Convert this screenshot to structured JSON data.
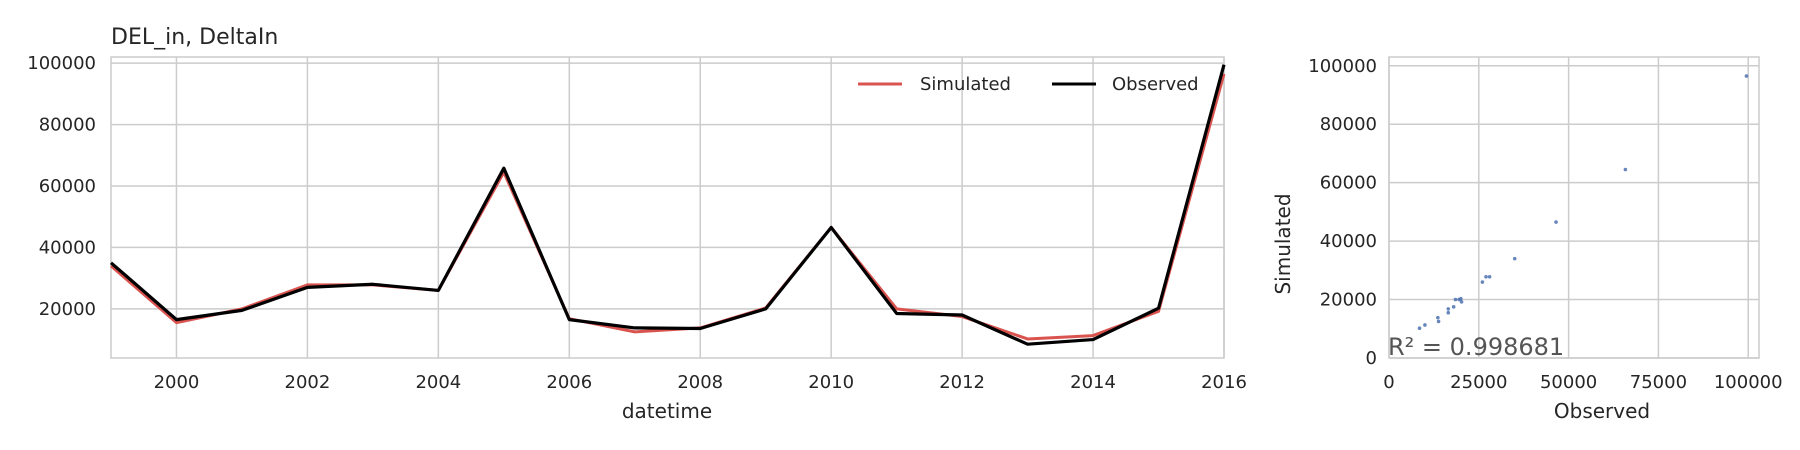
{
  "chart_data": [
    {
      "type": "line",
      "title": "DEL_in, DeltaIn",
      "xlabel": "datetime",
      "ylabel": "",
      "xlim": [
        1999,
        2016
      ],
      "ylim": [
        4000,
        102000
      ],
      "grid": true,
      "legend_position": "top-right",
      "x_ticks": [
        "2000",
        "2002",
        "2004",
        "2006",
        "2008",
        "2010",
        "2012",
        "2014",
        "2016"
      ],
      "y_ticks": [
        "20000",
        "40000",
        "60000",
        "80000",
        "100000"
      ],
      "x": [
        1999,
        2000,
        2001,
        2002,
        2003,
        2004,
        2005,
        2006,
        2007,
        2008,
        2009,
        2010,
        2011,
        2012,
        2013,
        2014,
        2015,
        2016
      ],
      "series": [
        {
          "name": "Simulated",
          "color": "#d9534f",
          "values": [
            34000,
            15500,
            20000,
            27800,
            27800,
            26000,
            64500,
            16800,
            12500,
            13800,
            20300,
            46500,
            20000,
            17500,
            10200,
            11300,
            19200,
            96500
          ]
        },
        {
          "name": "Observed",
          "color": "#000000",
          "values": [
            35000,
            16500,
            19500,
            27000,
            28000,
            26000,
            65800,
            16500,
            13800,
            13600,
            20000,
            46500,
            18500,
            18000,
            8500,
            10000,
            20200,
            99500
          ]
        }
      ]
    },
    {
      "type": "scatter",
      "xlabel": "Observed",
      "ylabel": "Simulated",
      "xlim": [
        0,
        103000
      ],
      "ylim": [
        0,
        103000
      ],
      "grid": true,
      "x_ticks": [
        "0",
        "25000",
        "50000",
        "75000",
        "100000"
      ],
      "y_ticks": [
        "0",
        "20000",
        "40000",
        "60000",
        "80000",
        "100000"
      ],
      "point_color": "#4c72b0",
      "annotation": "R² = 0.998681",
      "points": [
        [
          8500,
          10200
        ],
        [
          10000,
          11300
        ],
        [
          13600,
          13800
        ],
        [
          13800,
          12500
        ],
        [
          16500,
          16800
        ],
        [
          16500,
          15500
        ],
        [
          18000,
          17500
        ],
        [
          18500,
          20000
        ],
        [
          19500,
          20000
        ],
        [
          20000,
          20300
        ],
        [
          20200,
          19200
        ],
        [
          26000,
          26000
        ],
        [
          27000,
          27800
        ],
        [
          28000,
          27800
        ],
        [
          35000,
          34000
        ],
        [
          46500,
          46500
        ],
        [
          65800,
          64500
        ],
        [
          99500,
          96500
        ]
      ]
    }
  ]
}
